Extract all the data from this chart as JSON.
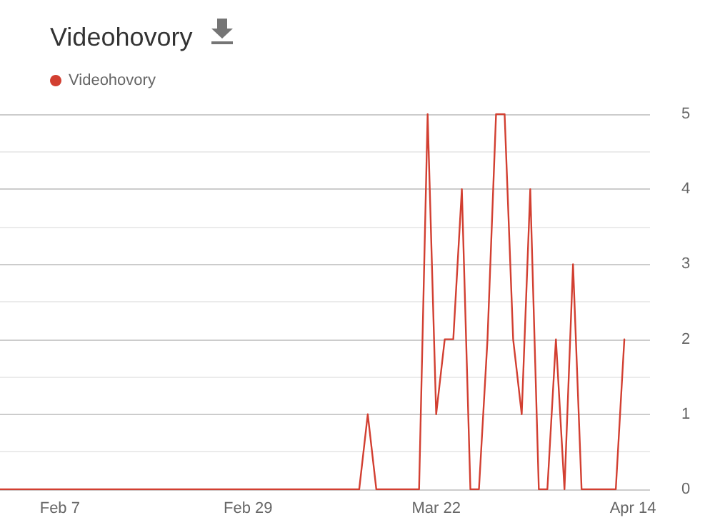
{
  "chart_data": {
    "type": "line",
    "title": "Videohovory",
    "legend": "top left",
    "grid": "y",
    "marker": "none",
    "line_style": "solid",
    "x": [
      "--01-31",
      "--03-13",
      "--03-14",
      "--03-15",
      "--03-20",
      "--03-21",
      "--03-22",
      "--03-23",
      "--03-24",
      "--03-25",
      "--03-26",
      "--03-27",
      "--03-28",
      "--03-29",
      "--03-30",
      "--03-31",
      "--04-01",
      "--04-02",
      "--04-03",
      "--04-04",
      "--04-05",
      "--04-06",
      "--04-07",
      "--04-08",
      "--04-12",
      "--04-13"
    ],
    "series": [
      {
        "name": "Videohovory",
        "color": "#d23f31",
        "values": [
          0,
          0,
          1,
          0,
          0,
          5,
          1,
          2,
          2,
          4,
          0,
          0,
          2,
          5,
          5,
          2,
          1,
          4,
          0,
          0,
          2,
          0,
          3,
          0,
          0,
          2
        ]
      }
    ],
    "xlim": [
      "--01-31",
      "--04-16"
    ],
    "xticks": [
      {
        "value": "--02-07",
        "label": "Feb 7"
      },
      {
        "value": "--02-29",
        "label": "Feb 29"
      },
      {
        "value": "--03-22",
        "label": "Mar 22"
      },
      {
        "value": "--04-14",
        "label": "Apr 14"
      }
    ],
    "ylim": [
      0,
      5
    ],
    "yticks": [
      0,
      1,
      2,
      3,
      4,
      5
    ]
  }
}
